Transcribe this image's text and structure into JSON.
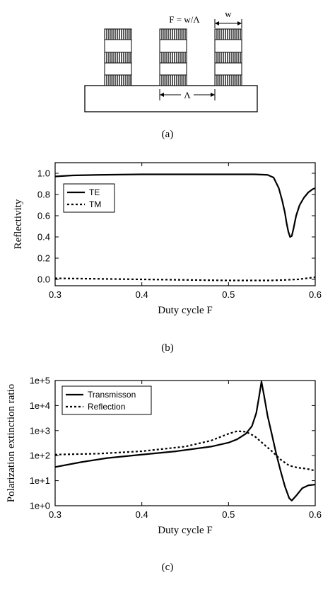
{
  "panel_a": {
    "formula": "F = w/Λ",
    "width_label": "w",
    "period_label": "Λ",
    "caption": "(a)"
  },
  "chart_data": [
    {
      "type": "line",
      "caption": "(b)",
      "xlabel": "Duty cycle F",
      "ylabel": "Reflectivity",
      "xlim": [
        0.3,
        0.6
      ],
      "ylim": [
        -0.06,
        1.1
      ],
      "xticks": [
        0.3,
        0.4,
        0.5,
        0.6
      ],
      "xtick_labels": [
        "0.3",
        "0.4",
        "0.5",
        "0.6"
      ],
      "yticks": [
        0.0,
        0.2,
        0.4,
        0.6,
        0.8,
        1.0
      ],
      "ytick_labels": [
        "0.0",
        "0.2",
        "0.4",
        "0.6",
        "0.8",
        "1.0"
      ],
      "log_y": false,
      "grid": false,
      "legend_position": "top-left",
      "series": [
        {
          "name": "TE",
          "style": "solid",
          "x": [
            0.3,
            0.32,
            0.35,
            0.4,
            0.45,
            0.5,
            0.53,
            0.545,
            0.552,
            0.558,
            0.562,
            0.565,
            0.567,
            0.569,
            0.571,
            0.573,
            0.575,
            0.578,
            0.582,
            0.587,
            0.592,
            0.597,
            0.6
          ],
          "y": [
            0.97,
            0.98,
            0.985,
            0.99,
            0.99,
            0.99,
            0.99,
            0.985,
            0.96,
            0.86,
            0.74,
            0.63,
            0.53,
            0.45,
            0.4,
            0.41,
            0.48,
            0.6,
            0.7,
            0.77,
            0.82,
            0.85,
            0.86
          ]
        },
        {
          "name": "TM",
          "style": "dashed",
          "x": [
            0.3,
            0.35,
            0.4,
            0.45,
            0.5,
            0.55,
            0.58,
            0.6
          ],
          "y": [
            0.01,
            0.005,
            0.0,
            -0.005,
            -0.01,
            -0.01,
            0.0,
            0.02
          ]
        }
      ]
    },
    {
      "type": "line",
      "caption": "(c)",
      "xlabel": "Duty cycle F",
      "ylabel": "Polarization extinction ratio",
      "xlim": [
        0.3,
        0.6
      ],
      "ylim": [
        1,
        100000
      ],
      "xticks": [
        0.3,
        0.4,
        0.5,
        0.6
      ],
      "xtick_labels": [
        "0.3",
        "0.4",
        "0.5",
        "0.6"
      ],
      "yticks": [
        1,
        10,
        100,
        1000,
        10000,
        100000
      ],
      "ytick_labels": [
        "1e+0",
        "1e+1",
        "1e+2",
        "1e+3",
        "1e+4",
        "1e+5"
      ],
      "log_y": true,
      "grid": false,
      "legend_position": "top-left",
      "series": [
        {
          "name": "Transmisson",
          "style": "solid",
          "x": [
            0.3,
            0.33,
            0.36,
            0.4,
            0.44,
            0.48,
            0.5,
            0.51,
            0.52,
            0.527,
            0.532,
            0.535,
            0.538,
            0.541,
            0.545,
            0.55,
            0.555,
            0.56,
            0.565,
            0.57,
            0.573,
            0.578,
            0.585,
            0.592,
            0.6
          ],
          "y": [
            35,
            55,
            80,
            110,
            150,
            230,
            330,
            450,
            750,
            1500,
            5000,
            20000,
            90000,
            25000,
            4000,
            700,
            120,
            25,
            6,
            2,
            1.6,
            2.5,
            5,
            6.5,
            7
          ]
        },
        {
          "name": "Reflection",
          "style": "dashed",
          "x": [
            0.3,
            0.35,
            0.4,
            0.45,
            0.48,
            0.5,
            0.51,
            0.52,
            0.53,
            0.54,
            0.55,
            0.56,
            0.57,
            0.58,
            0.59,
            0.6
          ],
          "y": [
            110,
            120,
            150,
            230,
            400,
            750,
            950,
            900,
            600,
            300,
            150,
            70,
            40,
            33,
            30,
            25
          ]
        }
      ]
    }
  ]
}
